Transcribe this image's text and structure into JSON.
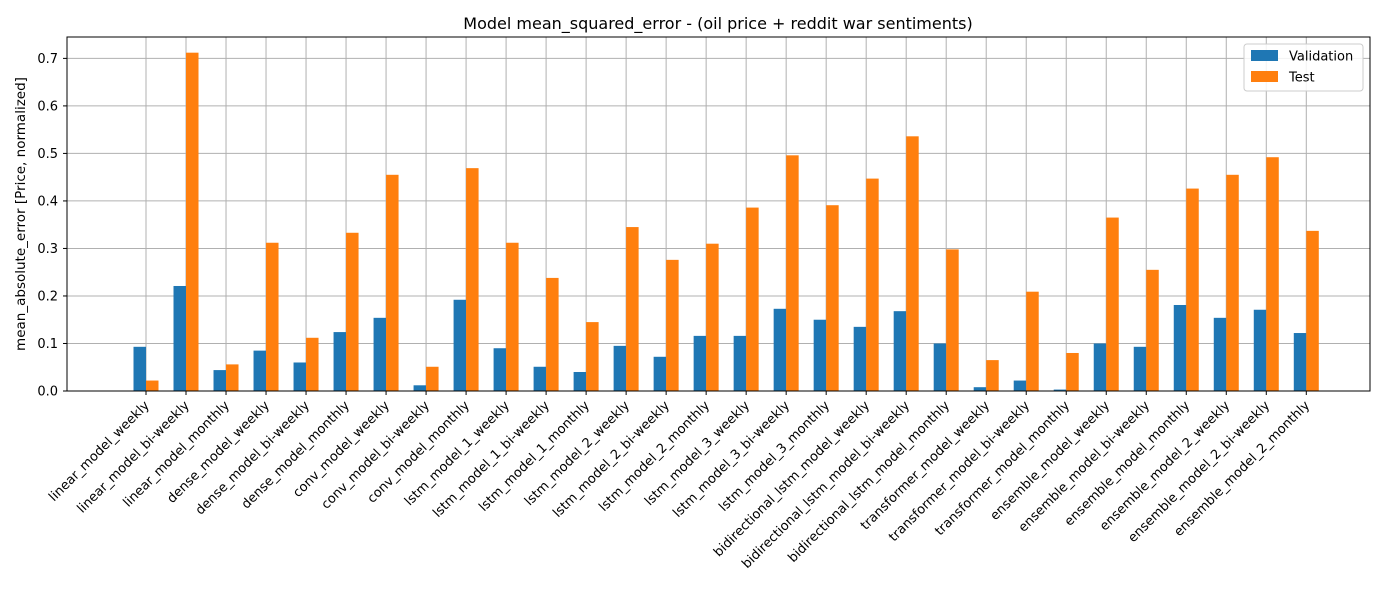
{
  "chart_data": {
    "type": "bar",
    "title": "Model mean_squared_error - (oil price + reddit war sentiments)",
    "xlabel": "",
    "ylabel": "mean_absolute_error [Price, normalized]",
    "ylim": [
      0,
      0.745
    ],
    "yticks": [
      "0.0",
      "0.1",
      "0.2",
      "0.3",
      "0.4",
      "0.5",
      "0.6",
      "0.7"
    ],
    "grid": true,
    "legend_position": "top-right",
    "categories": [
      "linear_model_weekly",
      "linear_model_bi-weekly",
      "linear_model_monthly",
      "dense_model_weekly",
      "dense_model_bi-weekly",
      "dense_model_monthly",
      "conv_model_weekly",
      "conv_model_bi-weekly",
      "conv_model_monthly",
      "lstm_model_1_weekly",
      "lstm_model_1_bi-weekly",
      "lstm_model_1_monthly",
      "lstm_model_2_weekly",
      "lstm_model_2_bi-weekly",
      "lstm_model_2_monthly",
      "lstm_model_3_weekly",
      "lstm_model_3_bi-weekly",
      "lstm_model_3_monthly",
      "bidirectional_lstm_model_weekly",
      "bidirectional_lstm_model_bi-weekly",
      "bidirectional_lstm_model_monthly",
      "transformer_model_weekly",
      "transformer_model_bi-weekly",
      "transformer_model_monthly",
      "ensemble_model_weekly",
      "ensemble_model_bi-weekly",
      "ensemble_model_monthly",
      "ensemble_model_2_weekly",
      "ensemble_model_2_bi-weekly",
      "ensemble_model_2_monthly"
    ],
    "series": [
      {
        "name": "Validation",
        "color": "#1f77b4",
        "values": [
          0.093,
          0.221,
          0.044,
          0.085,
          0.06,
          0.124,
          0.154,
          0.012,
          0.192,
          0.09,
          0.051,
          0.04,
          0.095,
          0.072,
          0.116,
          0.116,
          0.173,
          0.15,
          0.135,
          0.168,
          0.1,
          0.008,
          0.022,
          0.003,
          0.1,
          0.093,
          0.181,
          0.154,
          0.171,
          0.122
        ]
      },
      {
        "name": "Test",
        "color": "#ff7f0e",
        "values": [
          0.022,
          0.712,
          0.056,
          0.312,
          0.112,
          0.333,
          0.455,
          0.051,
          0.469,
          0.312,
          0.238,
          0.145,
          0.345,
          0.276,
          0.31,
          0.386,
          0.496,
          0.391,
          0.447,
          0.536,
          0.298,
          0.065,
          0.209,
          0.08,
          0.365,
          0.255,
          0.426,
          0.455,
          0.492,
          0.337
        ]
      }
    ]
  }
}
